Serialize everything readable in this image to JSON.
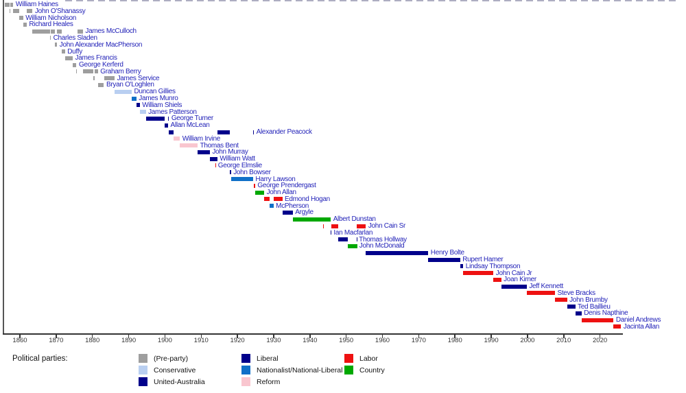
{
  "parties": {
    "pre_party": {
      "label": "(Pre-party)",
      "color": "#9e9e9e"
    },
    "conservative": {
      "label": "Conservative",
      "color": "#b9cff1"
    },
    "united_australia": {
      "label": "United-Australia",
      "color": "#00008b"
    },
    "liberal": {
      "label": "Liberal",
      "color": "#00008b"
    },
    "nationalist": {
      "label": "Nationalist/National-Liberal",
      "color": "#1070c8"
    },
    "reform": {
      "label": "Reform",
      "color": "#f9c6cf"
    },
    "labor": {
      "label": "Labor",
      "color": "#ee1111"
    },
    "country": {
      "label": "Country",
      "color": "#00a800"
    }
  },
  "legend": {
    "title": "Political parties:",
    "columns": [
      [
        "pre_party",
        "conservative",
        "united_australia"
      ],
      [
        "liberal",
        "nationalist",
        "reform"
      ],
      [
        "labor",
        "country"
      ]
    ]
  },
  "chart_data": {
    "type": "bar",
    "variant": "timeline-gantt",
    "title": "",
    "xlabel": "",
    "ylabel": "",
    "grid": false,
    "legend_position": "bottom",
    "xlim": [
      1855.3,
      2026.8
    ],
    "x_ticks": [
      1860,
      1870,
      1880,
      1890,
      1900,
      1910,
      1920,
      1930,
      1940,
      1950,
      1960,
      1970,
      1980,
      1990,
      2000,
      2010,
      2020
    ],
    "rows": [
      {
        "name": "William Haines",
        "party": "pre_party",
        "terms": [
          [
            1855.91,
            1857.19
          ],
          [
            1857.32,
            1858.19
          ]
        ]
      },
      {
        "name": "John O'Shanassy",
        "party": "pre_party",
        "terms": [
          [
            1857.19,
            1857.32
          ],
          [
            1858.19,
            1859.82
          ],
          [
            1861.87,
            1863.49
          ]
        ]
      },
      {
        "name": "William Nicholson",
        "party": "pre_party",
        "terms": [
          [
            1859.82,
            1860.9
          ]
        ]
      },
      {
        "name": "Richard Heales",
        "party": "pre_party",
        "terms": [
          [
            1860.9,
            1861.87
          ]
        ]
      },
      {
        "name": "James McCulloch",
        "party": "pre_party",
        "terms": [
          [
            1863.49,
            1868.35
          ],
          [
            1868.53,
            1869.72
          ],
          [
            1870.27,
            1871.46
          ],
          [
            1875.8,
            1877.39
          ]
        ]
      },
      {
        "name": "Charles Sladen",
        "party": "pre_party",
        "terms": [
          [
            1868.35,
            1868.53
          ]
        ]
      },
      {
        "name": "John Alexander MacPherson",
        "party": "pre_party",
        "terms": [
          [
            1869.72,
            1870.27
          ]
        ]
      },
      {
        "name": "Duffy",
        "party": "pre_party",
        "terms": [
          [
            1871.46,
            1872.44
          ]
        ]
      },
      {
        "name": "James Francis",
        "party": "pre_party",
        "terms": [
          [
            1872.44,
            1874.58
          ]
        ]
      },
      {
        "name": "George Kerferd",
        "party": "pre_party",
        "terms": [
          [
            1874.58,
            1875.6
          ]
        ]
      },
      {
        "name": "Graham Berry",
        "party": "pre_party",
        "terms": [
          [
            1875.6,
            1875.8
          ],
          [
            1877.39,
            1880.18
          ],
          [
            1880.59,
            1881.52
          ]
        ]
      },
      {
        "name": "James Service",
        "party": "pre_party",
        "terms": [
          [
            1880.18,
            1880.59
          ],
          [
            1883.18,
            1886.13
          ]
        ]
      },
      {
        "name": "Bryan O'Loghlen",
        "party": "pre_party",
        "terms": [
          [
            1881.52,
            1883.18
          ]
        ]
      },
      {
        "name": "Duncan Gillies",
        "party": "conservative",
        "terms": [
          [
            1886.13,
            1890.84
          ]
        ]
      },
      {
        "name": "James Munro",
        "party": "nationalist",
        "terms": [
          [
            1890.84,
            1892.13
          ]
        ]
      },
      {
        "name": "William Shiels",
        "party": "liberal",
        "terms": [
          [
            1892.13,
            1893.06
          ]
        ]
      },
      {
        "name": "James Patterson",
        "party": "conservative",
        "terms": [
          [
            1893.06,
            1894.74
          ]
        ]
      },
      {
        "name": "George Turner",
        "party": "liberal",
        "terms": [
          [
            1894.74,
            1899.93
          ],
          [
            1900.88,
            1901.12
          ]
        ]
      },
      {
        "name": "Allan McLean",
        "party": "liberal",
        "terms": [
          [
            1899.93,
            1900.88
          ]
        ]
      },
      {
        "name": "Alexander Peacock",
        "party": "liberal",
        "terms": [
          [
            1901.12,
            1902.44
          ],
          [
            1914.52,
            1917.91
          ],
          [
            1924.32,
            1924.55
          ]
        ]
      },
      {
        "name": "William Irvine",
        "party": "reform",
        "terms": [
          [
            1902.44,
            1904.13
          ]
        ]
      },
      {
        "name": "Thomas Bent",
        "party": "reform",
        "terms": [
          [
            1904.13,
            1909.02
          ]
        ]
      },
      {
        "name": "John Murray",
        "party": "liberal",
        "terms": [
          [
            1909.02,
            1912.38
          ]
        ]
      },
      {
        "name": "William Watt",
        "party": "liberal",
        "terms": [
          [
            1912.38,
            1913.94
          ],
          [
            1913.97,
            1914.46
          ]
        ]
      },
      {
        "name": "George Elmslie",
        "party": "labor",
        "terms": [
          [
            1913.94,
            1913.98
          ]
        ]
      },
      {
        "name": "John Bowser",
        "party": "liberal",
        "terms": [
          [
            1917.91,
            1918.22
          ]
        ]
      },
      {
        "name": "Harry Lawson",
        "party": "nationalist",
        "terms": [
          [
            1918.22,
            1924.32
          ]
        ]
      },
      {
        "name": "George Prendergast",
        "party": "labor",
        "terms": [
          [
            1924.55,
            1924.88
          ]
        ]
      },
      {
        "name": "John Allan",
        "party": "country",
        "terms": [
          [
            1924.88,
            1927.38
          ]
        ]
      },
      {
        "name": "Edmond Hogan",
        "party": "labor",
        "terms": [
          [
            1927.38,
            1928.89
          ],
          [
            1929.95,
            1932.38
          ]
        ]
      },
      {
        "name": "McPherson",
        "party": "nationalist",
        "terms": [
          [
            1928.89,
            1929.95
          ]
        ]
      },
      {
        "name": "Argyle",
        "party": "united_australia",
        "terms": [
          [
            1932.38,
            1935.25
          ]
        ]
      },
      {
        "name": "Albert Dunstan",
        "party": "country",
        "terms": [
          [
            1935.25,
            1943.7
          ],
          [
            1943.72,
            1945.75
          ]
        ]
      },
      {
        "name": "John Cain Sr",
        "party": "labor",
        "terms": [
          [
            1943.7,
            1943.72
          ],
          [
            1945.89,
            1947.89
          ],
          [
            1952.96,
            1955.43
          ]
        ]
      },
      {
        "name": "Ian Macfarlan",
        "party": "liberal",
        "terms": [
          [
            1945.75,
            1945.89
          ]
        ]
      },
      {
        "name": "Thomas Hollway",
        "party": "liberal",
        "terms": [
          [
            1947.89,
            1950.49
          ],
          [
            1952.82,
            1952.84
          ]
        ]
      },
      {
        "name": "John McDonald",
        "party": "country",
        "terms": [
          [
            1950.49,
            1952.82
          ],
          [
            1952.84,
            1952.96
          ]
        ]
      },
      {
        "name": "Henry Bolte",
        "party": "liberal",
        "terms": [
          [
            1955.43,
            1972.64
          ]
        ]
      },
      {
        "name": "Rupert Hamer",
        "party": "liberal",
        "terms": [
          [
            1972.64,
            1981.42
          ]
        ]
      },
      {
        "name": "Lindsay Thompson",
        "party": "liberal",
        "terms": [
          [
            1981.42,
            1982.27
          ]
        ]
      },
      {
        "name": "John Cain Jr",
        "party": "labor",
        "terms": [
          [
            1982.27,
            1990.61
          ]
        ]
      },
      {
        "name": "Joan Kirner",
        "party": "labor",
        "terms": [
          [
            1990.61,
            1992.76
          ]
        ]
      },
      {
        "name": "Jeff Kennett",
        "party": "liberal",
        "terms": [
          [
            1992.76,
            1999.8
          ]
        ]
      },
      {
        "name": "Steve Bracks",
        "party": "labor",
        "terms": [
          [
            1999.8,
            2007.58
          ]
        ]
      },
      {
        "name": "John Brumby",
        "party": "labor",
        "terms": [
          [
            2007.58,
            2010.92
          ]
        ]
      },
      {
        "name": "Ted Baillieu",
        "party": "liberal",
        "terms": [
          [
            2010.92,
            2013.18
          ]
        ]
      },
      {
        "name": "Denis Napthine",
        "party": "liberal",
        "terms": [
          [
            2013.18,
            2014.92
          ]
        ]
      },
      {
        "name": "Daniel Andrews",
        "party": "labor",
        "terms": [
          [
            2014.92,
            2023.74
          ]
        ]
      },
      {
        "name": "Jacinta Allan",
        "party": "labor",
        "terms": [
          [
            2023.74,
            2025.8
          ]
        ]
      }
    ]
  },
  "colors": {
    "row_label": "#2222b8",
    "axis": "#333333",
    "tick_label": "#333333"
  }
}
